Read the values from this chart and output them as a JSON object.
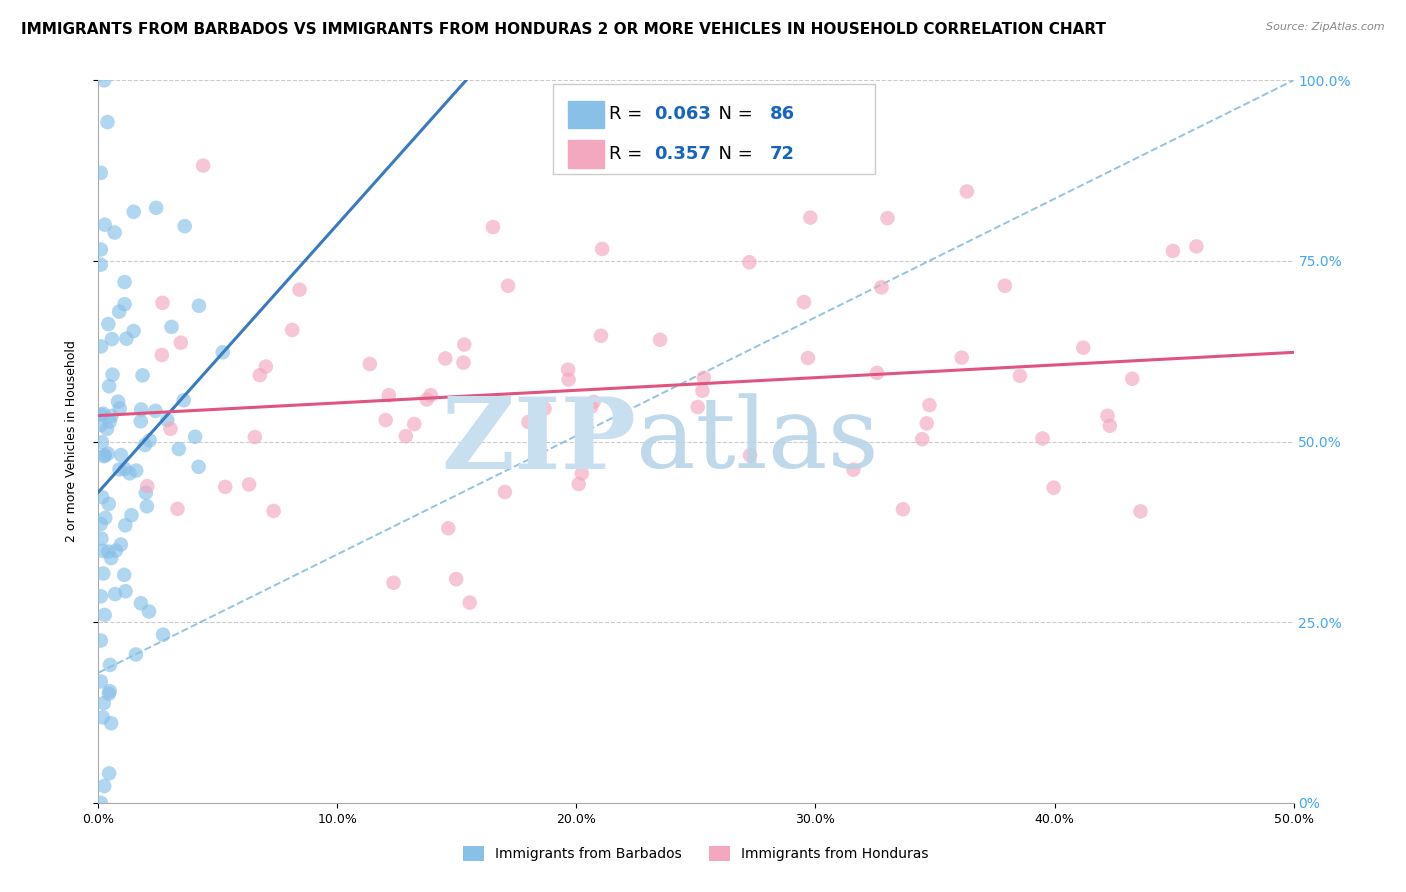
{
  "title": "IMMIGRANTS FROM BARBADOS VS IMMIGRANTS FROM HONDURAS 2 OR MORE VEHICLES IN HOUSEHOLD CORRELATION CHART",
  "source": "Source: ZipAtlas.com",
  "ylabel": "2 or more Vehicles in Household",
  "xlim": [
    0.0,
    0.5
  ],
  "ylim": [
    0.0,
    1.0
  ],
  "xticks": [
    0.0,
    0.1,
    0.2,
    0.3,
    0.4,
    0.5
  ],
  "xticklabels": [
    "0.0%",
    "10.0%",
    "20.0%",
    "30.0%",
    "40.0%",
    "50.0%"
  ],
  "yticks": [
    0.0,
    0.25,
    0.5,
    0.75,
    1.0
  ],
  "yticklabels": [
    "0%",
    "25.0%",
    "50.0%",
    "75.0%",
    "100.0%"
  ],
  "legend_barbados": "Immigrants from Barbados",
  "legend_honduras": "Immigrants from Honduras",
  "R_barbados": 0.063,
  "N_barbados": 86,
  "R_honduras": 0.357,
  "N_honduras": 72,
  "color_barbados": "#88c0e8",
  "color_honduras": "#f4a8c0",
  "line_color_barbados": "#3a7abf",
  "line_color_honduras": "#e05580",
  "dashed_line_color": "#7ab4d8",
  "watermark_zip": "ZIP",
  "watermark_atlas": "atlas",
  "watermark_color": "#c8dff0",
  "title_fontsize": 11,
  "axis_fontsize": 9,
  "tick_fontsize": 9,
  "legend_R_color": "#1565C0",
  "legend_N_color": "#1565C0",
  "right_axis_color": "#42a5f5"
}
